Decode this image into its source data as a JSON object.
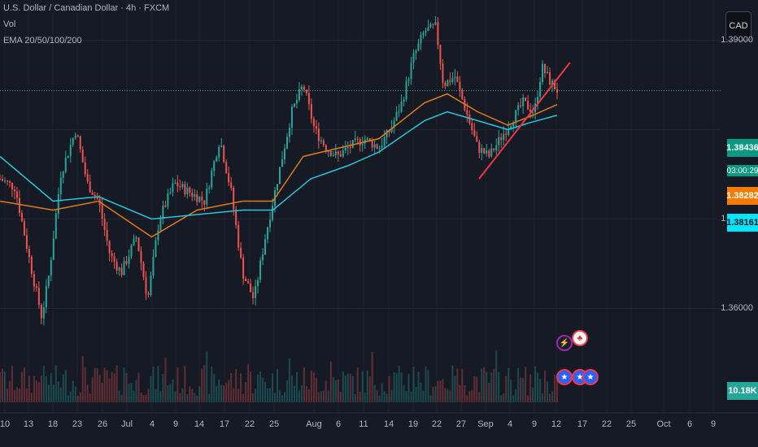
{
  "legend": {
    "symbol": "U.S. Dollar / Canadian Dollar · 4h · FXCM",
    "vol": "Vol",
    "ema": "EMA 20/50/100/200"
  },
  "currency": "CAD",
  "price_tags": {
    "last": "1.38436",
    "countdown": "03:00:29",
    "ema_orange": "1.38282",
    "ema_teal": "1.38161",
    "volume": "10.18K"
  },
  "colors": {
    "background": "#161a25",
    "up": "#26a69a",
    "down": "#ef5350",
    "ema_orange": "#e07b1a",
    "ema_teal": "#26c6da",
    "trendline": "#f23645"
  },
  "icons": [
    "lightning-event-icon",
    "canada-flag-icon",
    "us-flag-icon"
  ],
  "chart_data": {
    "type": "candlestick",
    "title": "U.S. Dollar / Canadian Dollar · 4h · FXCM",
    "y_ticks": [
      "1.39000",
      "1.37000",
      "1.36000"
    ],
    "ylim": [
      1.3495,
      1.3945
    ],
    "x_ticks": [
      "10",
      "13",
      "18",
      "23",
      "26",
      "Jul",
      "4",
      "9",
      "14",
      "17",
      "22",
      "25",
      "Aug",
      "6",
      "11",
      "14",
      "19",
      "22",
      "27",
      "Sep",
      "4",
      "9",
      "12",
      "17",
      "22",
      "25",
      "Oct",
      "6",
      "9"
    ],
    "close_path": [
      [
        0,
        1.3745
      ],
      [
        0.02,
        1.3735
      ],
      [
        0.04,
        1.365
      ],
      [
        0.055,
        1.359
      ],
      [
        0.065,
        1.364
      ],
      [
        0.08,
        1.375
      ],
      [
        0.1,
        1.38
      ],
      [
        0.115,
        1.374
      ],
      [
        0.13,
        1.372
      ],
      [
        0.145,
        1.366
      ],
      [
        0.16,
        1.364
      ],
      [
        0.18,
        1.368
      ],
      [
        0.195,
        1.361
      ],
      [
        0.21,
        1.37
      ],
      [
        0.23,
        1.374
      ],
      [
        0.25,
        1.373
      ],
      [
        0.27,
        1.372
      ],
      [
        0.29,
        1.379
      ],
      [
        0.305,
        1.373
      ],
      [
        0.32,
        1.364
      ],
      [
        0.335,
        1.361
      ],
      [
        0.35,
        1.368
      ],
      [
        0.37,
        1.376
      ],
      [
        0.385,
        1.382
      ],
      [
        0.4,
        1.385
      ],
      [
        0.415,
        1.38
      ],
      [
        0.43,
        1.378
      ],
      [
        0.445,
        1.377
      ],
      [
        0.46,
        1.378
      ],
      [
        0.48,
        1.379
      ],
      [
        0.5,
        1.378
      ],
      [
        0.515,
        1.38
      ],
      [
        0.53,
        1.383
      ],
      [
        0.545,
        1.388
      ],
      [
        0.56,
        1.391
      ],
      [
        0.575,
        1.3915
      ],
      [
        0.585,
        1.385
      ],
      [
        0.6,
        1.386
      ],
      [
        0.615,
        1.382
      ],
      [
        0.63,
        1.378
      ],
      [
        0.645,
        1.377
      ],
      [
        0.66,
        1.379
      ],
      [
        0.675,
        1.381
      ],
      [
        0.69,
        1.383
      ],
      [
        0.705,
        1.382
      ],
      [
        0.715,
        1.387
      ],
      [
        0.725,
        1.3855
      ],
      [
        0.735,
        1.3844
      ]
    ],
    "ema_orange_path": [
      [
        0,
        1.372
      ],
      [
        0.07,
        1.371
      ],
      [
        0.13,
        1.372
      ],
      [
        0.2,
        1.368
      ],
      [
        0.26,
        1.371
      ],
      [
        0.32,
        1.372
      ],
      [
        0.36,
        1.372
      ],
      [
        0.4,
        1.377
      ],
      [
        0.45,
        1.378
      ],
      [
        0.5,
        1.379
      ],
      [
        0.56,
        1.383
      ],
      [
        0.59,
        1.384
      ],
      [
        0.63,
        1.382
      ],
      [
        0.67,
        1.3805
      ],
      [
        0.7,
        1.3815
      ],
      [
        0.735,
        1.3828
      ]
    ],
    "ema_teal_path": [
      [
        0,
        1.377
      ],
      [
        0.07,
        1.372
      ],
      [
        0.13,
        1.3725
      ],
      [
        0.2,
        1.37
      ],
      [
        0.26,
        1.3705
      ],
      [
        0.32,
        1.371
      ],
      [
        0.36,
        1.371
      ],
      [
        0.41,
        1.3745
      ],
      [
        0.46,
        1.376
      ],
      [
        0.5,
        1.3775
      ],
      [
        0.56,
        1.381
      ],
      [
        0.59,
        1.382
      ],
      [
        0.63,
        1.381
      ],
      [
        0.67,
        1.38
      ],
      [
        0.7,
        1.3808
      ],
      [
        0.735,
        1.3816
      ]
    ],
    "trendline": [
      [
        0.632,
        1.3745
      ],
      [
        0.752,
        1.3875
      ]
    ],
    "current_price": 1.38436
  }
}
